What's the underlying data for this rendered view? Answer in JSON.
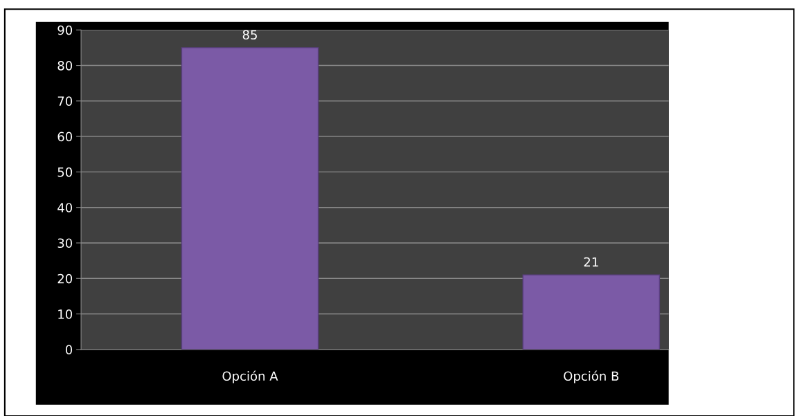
{
  "chart_data": {
    "type": "bar",
    "categories": [
      "Opción A",
      "Opción B"
    ],
    "values": [
      85,
      21
    ],
    "color": "#7b5aa6",
    "ylim": [
      0,
      90
    ],
    "yticks": [
      0,
      10,
      20,
      30,
      40,
      50,
      60,
      70,
      80,
      90
    ],
    "grid": "y",
    "data_labels": true
  }
}
